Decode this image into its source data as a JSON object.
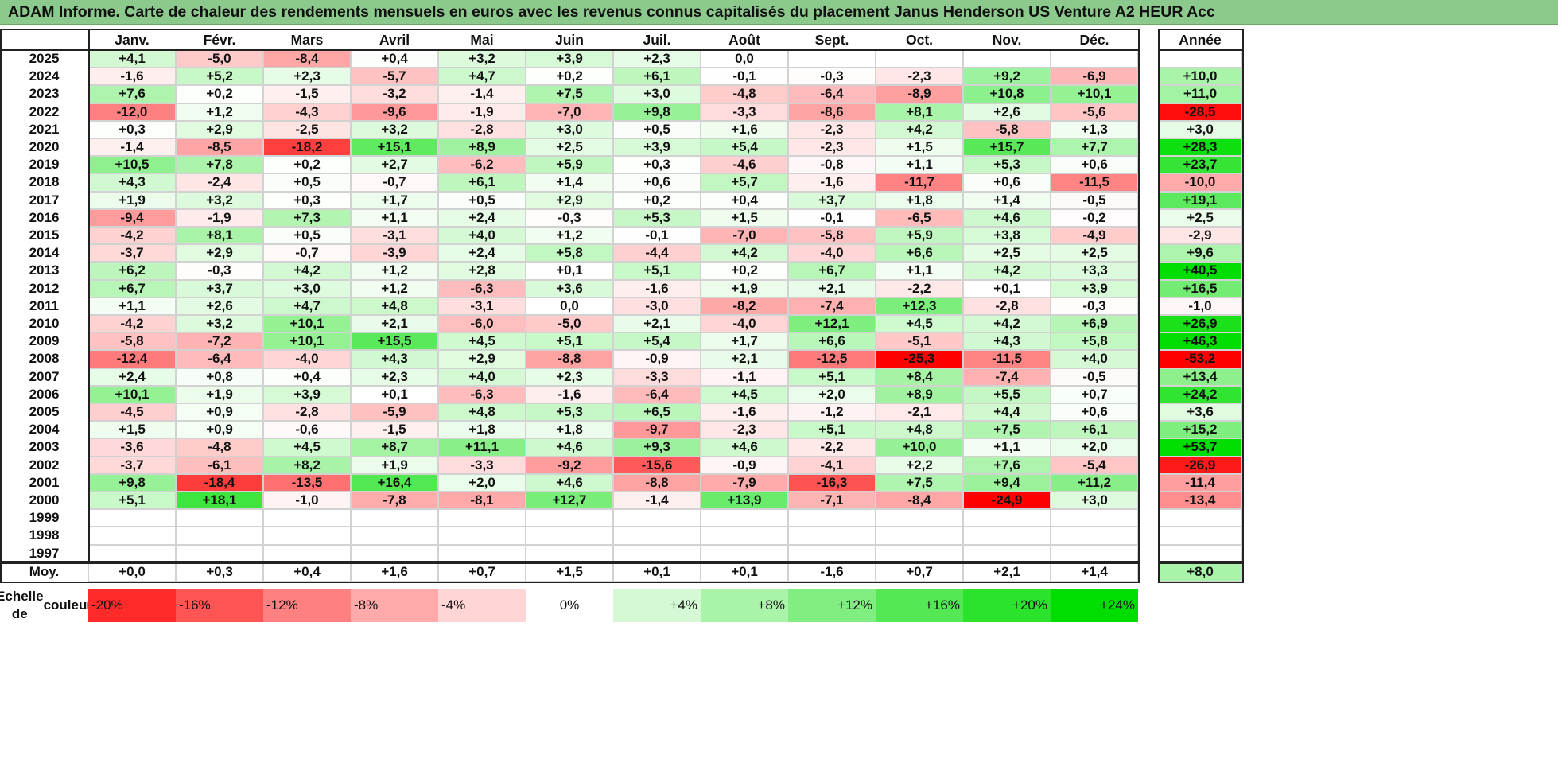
{
  "title": "ADAM Informe. Carte de chaleur des rendements mensuels en euros avec les revenus connus capitalisés du placement Janus Henderson US Venture A2 HEUR Acc",
  "chart_data": {
    "type": "heatmap",
    "months": [
      "Janv.",
      "Févr.",
      "Mars",
      "Avril",
      "Mai",
      "Juin",
      "Juil.",
      "Août",
      "Sept.",
      "Oct.",
      "Nov.",
      "Déc."
    ],
    "year_header": "Année",
    "avg_label": "Moy.",
    "rows": [
      {
        "year": "2025",
        "values": [
          "+4,1",
          "-5,0",
          "-8,4",
          "+0,4",
          "+3,2",
          "+3,9",
          "+2,3",
          "0,0",
          "",
          "",
          "",
          ""
        ],
        "annual": ""
      },
      {
        "year": "2024",
        "values": [
          "-1,6",
          "+5,2",
          "+2,3",
          "-5,7",
          "+4,7",
          "+0,2",
          "+6,1",
          "-0,1",
          "-0,3",
          "-2,3",
          "+9,2",
          "-6,9"
        ],
        "annual": "+10,0"
      },
      {
        "year": "2023",
        "values": [
          "+7,6",
          "+0,2",
          "-1,5",
          "-3,2",
          "-1,4",
          "+7,5",
          "+3,0",
          "-4,8",
          "-6,4",
          "-8,9",
          "+10,8",
          "+10,1"
        ],
        "annual": "+11,0"
      },
      {
        "year": "2022",
        "values": [
          "-12,0",
          "+1,2",
          "-4,3",
          "-9,6",
          "-1,9",
          "-7,0",
          "+9,8",
          "-3,3",
          "-8,6",
          "+8,1",
          "+2,6",
          "-5,6"
        ],
        "annual": "-28,5"
      },
      {
        "year": "2021",
        "values": [
          "+0,3",
          "+2,9",
          "-2,5",
          "+3,2",
          "-2,8",
          "+3,0",
          "+0,5",
          "+1,6",
          "-2,3",
          "+4,2",
          "-5,8",
          "+1,3"
        ],
        "annual": "+3,0"
      },
      {
        "year": "2020",
        "values": [
          "-1,4",
          "-8,5",
          "-18,2",
          "+15,1",
          "+8,9",
          "+2,5",
          "+3,9",
          "+5,4",
          "-2,3",
          "+1,5",
          "+15,7",
          "+7,7"
        ],
        "annual": "+28,3"
      },
      {
        "year": "2019",
        "values": [
          "+10,5",
          "+7,8",
          "+0,2",
          "+2,7",
          "-6,2",
          "+5,9",
          "+0,3",
          "-4,6",
          "-0,8",
          "+1,1",
          "+5,3",
          "+0,6"
        ],
        "annual": "+23,7"
      },
      {
        "year": "2018",
        "values": [
          "+4,3",
          "-2,4",
          "+0,5",
          "-0,7",
          "+6,1",
          "+1,4",
          "+0,6",
          "+5,7",
          "-1,6",
          "-11,7",
          "+0,6",
          "-11,5"
        ],
        "annual": "-10,0"
      },
      {
        "year": "2017",
        "values": [
          "+1,9",
          "+3,2",
          "+0,3",
          "+1,7",
          "+0,5",
          "+2,9",
          "+0,2",
          "+0,4",
          "+3,7",
          "+1,8",
          "+1,4",
          "-0,5"
        ],
        "annual": "+19,1"
      },
      {
        "year": "2016",
        "values": [
          "-9,4",
          "-1,9",
          "+7,3",
          "+1,1",
          "+2,4",
          "-0,3",
          "+5,3",
          "+1,5",
          "-0,1",
          "-6,5",
          "+4,6",
          "-0,2"
        ],
        "annual": "+2,5"
      },
      {
        "year": "2015",
        "values": [
          "-4,2",
          "+8,1",
          "+0,5",
          "-3,1",
          "+4,0",
          "+1,2",
          "-0,1",
          "-7,0",
          "-5,8",
          "+5,9",
          "+3,8",
          "-4,9"
        ],
        "annual": "-2,9"
      },
      {
        "year": "2014",
        "values": [
          "-3,7",
          "+2,9",
          "-0,7",
          "-3,9",
          "+2,4",
          "+5,8",
          "-4,4",
          "+4,2",
          "-4,0",
          "+6,6",
          "+2,5",
          "+2,5"
        ],
        "annual": "+9,6"
      },
      {
        "year": "2013",
        "values": [
          "+6,2",
          "-0,3",
          "+4,2",
          "+1,2",
          "+2,8",
          "+0,1",
          "+5,1",
          "+0,2",
          "+6,7",
          "+1,1",
          "+4,2",
          "+3,3"
        ],
        "annual": "+40,5"
      },
      {
        "year": "2012",
        "values": [
          "+6,7",
          "+3,7",
          "+3,0",
          "+1,2",
          "-6,3",
          "+3,6",
          "-1,6",
          "+1,9",
          "+2,1",
          "-2,2",
          "+0,1",
          "+3,9"
        ],
        "annual": "+16,5"
      },
      {
        "year": "2011",
        "values": [
          "+1,1",
          "+2,6",
          "+4,7",
          "+4,8",
          "-3,1",
          "0,0",
          "-3,0",
          "-8,2",
          "-7,4",
          "+12,3",
          "-2,8",
          "-0,3"
        ],
        "annual": "-1,0"
      },
      {
        "year": "2010",
        "values": [
          "-4,2",
          "+3,2",
          "+10,1",
          "+2,1",
          "-6,0",
          "-5,0",
          "+2,1",
          "-4,0",
          "+12,1",
          "+4,5",
          "+4,2",
          "+6,9"
        ],
        "annual": "+26,9"
      },
      {
        "year": "2009",
        "values": [
          "-5,8",
          "-7,2",
          "+10,1",
          "+15,5",
          "+4,5",
          "+5,1",
          "+5,4",
          "+1,7",
          "+6,6",
          "-5,1",
          "+4,3",
          "+5,8"
        ],
        "annual": "+46,3"
      },
      {
        "year": "2008",
        "values": [
          "-12,4",
          "-6,4",
          "-4,0",
          "+4,3",
          "+2,9",
          "-8,8",
          "-0,9",
          "+2,1",
          "-12,5",
          "-25,3",
          "-11,5",
          "+4,0"
        ],
        "annual": "-53,2"
      },
      {
        "year": "2007",
        "values": [
          "+2,4",
          "+0,8",
          "+0,4",
          "+2,3",
          "+4,0",
          "+2,3",
          "-3,3",
          "-1,1",
          "+5,1",
          "+8,4",
          "-7,4",
          "-0,5"
        ],
        "annual": "+13,4"
      },
      {
        "year": "2006",
        "values": [
          "+10,1",
          "+1,9",
          "+3,9",
          "+0,1",
          "-6,3",
          "-1,6",
          "-6,4",
          "+4,5",
          "+2,0",
          "+8,9",
          "+5,5",
          "+0,7"
        ],
        "annual": "+24,2"
      },
      {
        "year": "2005",
        "values": [
          "-4,5",
          "+0,9",
          "-2,8",
          "-5,9",
          "+4,8",
          "+5,3",
          "+6,5",
          "-1,6",
          "-1,2",
          "-2,1",
          "+4,4",
          "+0,6"
        ],
        "annual": "+3,6"
      },
      {
        "year": "2004",
        "values": [
          "+1,5",
          "+0,9",
          "-0,6",
          "-1,5",
          "+1,8",
          "+1,8",
          "-9,7",
          "-2,3",
          "+5,1",
          "+4,8",
          "+7,5",
          "+6,1"
        ],
        "annual": "+15,2"
      },
      {
        "year": "2003",
        "values": [
          "-3,6",
          "-4,8",
          "+4,5",
          "+8,7",
          "+11,1",
          "+4,6",
          "+9,3",
          "+4,6",
          "-2,2",
          "+10,0",
          "+1,1",
          "+2,0"
        ],
        "annual": "+53,7"
      },
      {
        "year": "2002",
        "values": [
          "-3,7",
          "-6,1",
          "+8,2",
          "+1,9",
          "-3,3",
          "-9,2",
          "-15,6",
          "-0,9",
          "-4,1",
          "+2,2",
          "+7,6",
          "-5,4"
        ],
        "annual": "-26,9"
      },
      {
        "year": "2001",
        "values": [
          "+9,8",
          "-18,4",
          "-13,5",
          "+16,4",
          "+2,0",
          "+4,6",
          "-8,8",
          "-7,9",
          "-16,3",
          "+7,5",
          "+9,4",
          "+11,2"
        ],
        "annual": "-11,4"
      },
      {
        "year": "2000",
        "values": [
          "+5,1",
          "+18,1",
          "-1,0",
          "-7,8",
          "-8,1",
          "+12,7",
          "-1,4",
          "+13,9",
          "-7,1",
          "-8,4",
          "-24,9",
          "+3,0"
        ],
        "annual": "-13,4"
      },
      {
        "year": "1999",
        "values": [
          "",
          "",
          "",
          "",
          "",
          "",
          "",
          "",
          "",
          "",
          "",
          ""
        ],
        "annual": ""
      },
      {
        "year": "1998",
        "values": [
          "",
          "",
          "",
          "",
          "",
          "",
          "",
          "",
          "",
          "",
          "",
          ""
        ],
        "annual": ""
      },
      {
        "year": "1997",
        "values": [
          "",
          "",
          "",
          "",
          "",
          "",
          "",
          "",
          "",
          "",
          "",
          ""
        ],
        "annual": ""
      }
    ],
    "averages": [
      "+0,0",
      "+0,3",
      "+0,4",
      "+1,6",
      "+0,7",
      "+1,5",
      "+0,1",
      "+0,1",
      "-1,6",
      "+0,7",
      "+2,1",
      "+1,4"
    ],
    "average_annual": "+8,0",
    "scale_label_lines": [
      "Echelle de",
      "couleur"
    ],
    "scale": [
      {
        "label": "-20%",
        "value": -20
      },
      {
        "label": "-16%",
        "value": -16
      },
      {
        "label": "-12%",
        "value": -12
      },
      {
        "label": "-8%",
        "value": -8
      },
      {
        "label": "-4%",
        "value": -4
      },
      {
        "label": "0%",
        "value": 0
      },
      {
        "label": "+4%",
        "value": 4
      },
      {
        "label": "+8%",
        "value": 8
      },
      {
        "label": "+12%",
        "value": 12
      },
      {
        "label": "+16%",
        "value": 16
      },
      {
        "label": "+20%",
        "value": 20
      },
      {
        "label": "+24%",
        "value": 24
      }
    ],
    "colors": {
      "negative_max": "#ff0000",
      "neutral": "#ffffff",
      "positive_max": "#00dd00",
      "title_background": "#8cc98c"
    }
  }
}
